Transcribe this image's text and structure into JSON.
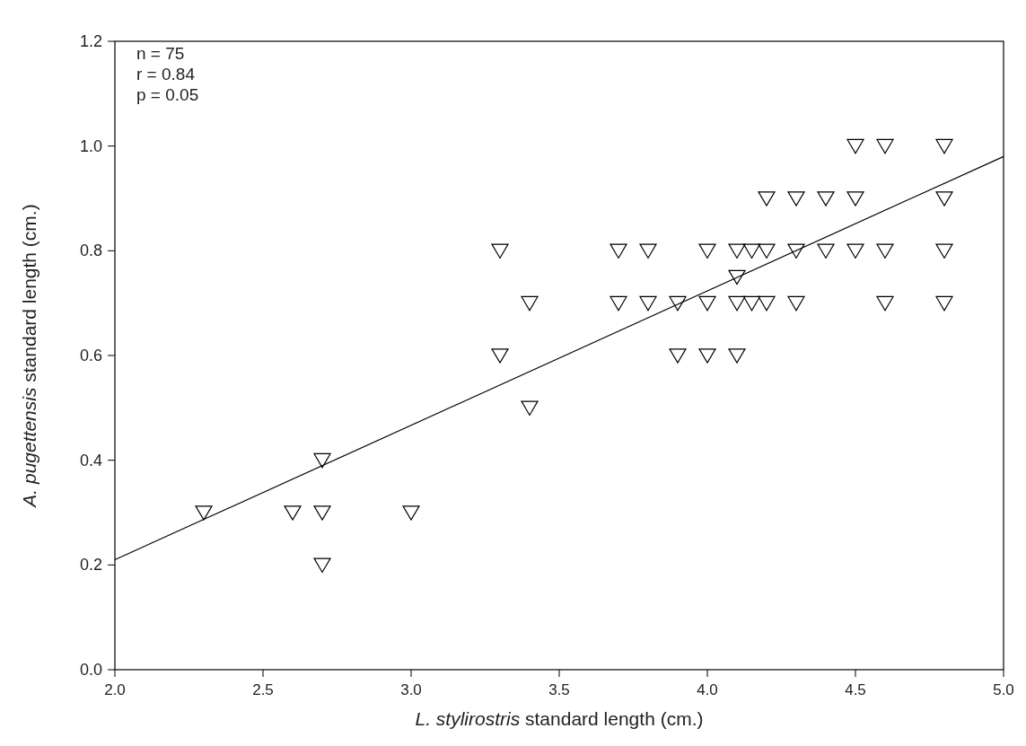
{
  "chart_data": {
    "type": "scatter",
    "xlabel": "L. stylirostris standard length (cm.)",
    "ylabel": "A. pugettensis standard length (cm.)",
    "annotations": [
      "n = 75",
      "r = 0.84",
      "p = 0.05"
    ],
    "xlim": [
      2.0,
      5.0
    ],
    "xticks": [
      {
        "value": 2,
        "label": "2.0"
      },
      2.5,
      {
        "value": 3,
        "label": "3.0"
      },
      3.5,
      {
        "value": 4,
        "label": "4.0"
      },
      4.5,
      {
        "value": 5,
        "label": "5.0"
      }
    ],
    "ylim": [
      0,
      1.2
    ],
    "yticks": [
      {
        "value": 0,
        "label": "0.0"
      },
      0.2,
      0.4,
      0.6,
      0.8,
      {
        "value": 1,
        "label": "1.0"
      },
      1.2
    ],
    "grid": false,
    "series": [
      {
        "color": "#000000",
        "marker": "triangle",
        "x": [
          2.3,
          2.6,
          2.7,
          2.7,
          2.7,
          3.0,
          3.3,
          3.3,
          3.4,
          3.4,
          3.7,
          3.7,
          3.8,
          3.8,
          3.9,
          3.9,
          4.0,
          4.0,
          4.0,
          4.1,
          4.1,
          4.1,
          4.1,
          4.15,
          4.15,
          4.2,
          4.2,
          4.2,
          4.3,
          4.3,
          4.3,
          4.4,
          4.4,
          4.5,
          4.5,
          4.5,
          4.6,
          4.6,
          4.6,
          4.8,
          4.8,
          4.8,
          4.8
        ],
        "values": [
          0.3,
          0.3,
          0.4,
          0.3,
          0.2,
          0.3,
          0.8,
          0.6,
          0.7,
          0.5,
          0.8,
          0.7,
          0.8,
          0.7,
          0.7,
          0.6,
          0.8,
          0.7,
          0.6,
          0.8,
          0.75,
          0.7,
          0.6,
          0.8,
          0.7,
          0.9,
          0.8,
          0.7,
          0.9,
          0.8,
          0.7,
          0.9,
          0.8,
          1.0,
          0.9,
          0.8,
          1.0,
          0.8,
          0.7,
          1.0,
          0.9,
          0.8,
          0.7
        ]
      },
      {
        "type": "line",
        "color": "#000000",
        "x": [
          2.0,
          5.0
        ],
        "values": [
          0.21,
          0.98
        ],
        "marker": "none",
        "line_style": "solid"
      }
    ]
  }
}
